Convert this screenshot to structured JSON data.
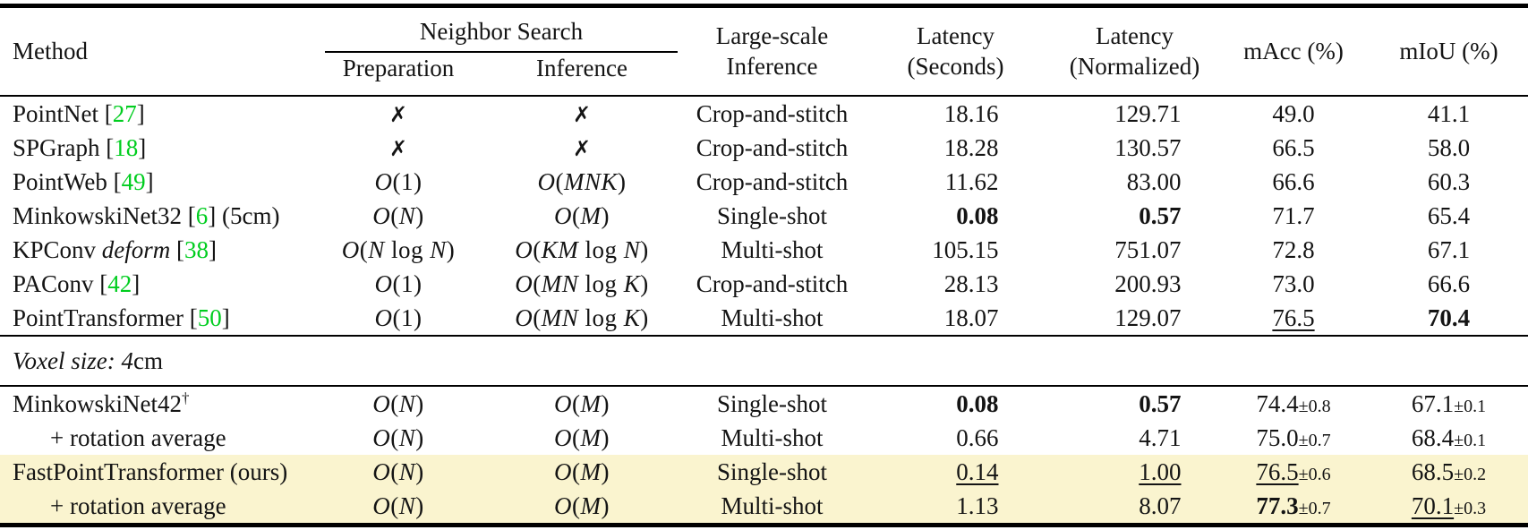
{
  "colors": {
    "citation_green": "#00CD1F",
    "highlight_yellow": "#FAF4CF"
  },
  "header": {
    "method": "Method",
    "neighbor_search": "Neighbor Search",
    "preparation": "Preparation",
    "inference": "Inference",
    "large_scale_line1": "Large-scale",
    "large_scale_line2": "Inference",
    "latency_sec_line1": "Latency",
    "latency_sec_line2": "(Seconds)",
    "latency_norm_line1": "Latency",
    "latency_norm_line2": "(Normalized)",
    "macc": "mAcc (%)",
    "miou": "mIoU (%)"
  },
  "section_divider": {
    "italic_part": "Voxel size: 4",
    "roman_part": "cm"
  },
  "rows": [
    {
      "section": "top",
      "method": "PointNet",
      "cite": "27",
      "prep": "✗",
      "inf": "✗",
      "large": "Crop-and-stitch",
      "sec": "18.16",
      "norm": "129.71",
      "macc": "49.0",
      "miou": "41.1"
    },
    {
      "section": "top",
      "method": "SPGraph",
      "cite": "18",
      "prep": "✗",
      "inf": "✗",
      "large": "Crop-and-stitch",
      "sec": "18.28",
      "norm": "130.57",
      "macc": "66.5",
      "miou": "58.0"
    },
    {
      "section": "top",
      "method": "PointWeb",
      "cite": "49",
      "prep": "O(1)",
      "inf": "O(MNK)",
      "large": "Crop-and-stitch",
      "sec": "11.62",
      "norm": "83.00",
      "macc": "66.6",
      "miou": "60.3"
    },
    {
      "section": "top",
      "method": "MinkowskiNet32",
      "cite": "6",
      "suffix": " (5cm)",
      "prep": "O(N)",
      "inf": "O(M)",
      "large": "Single-shot",
      "sec": "0.08",
      "sec_style": "bold",
      "norm": "0.57",
      "norm_style": "bold",
      "macc": "71.7",
      "miou": "65.4"
    },
    {
      "section": "top",
      "method": "KPConv ",
      "method_italic": "deform",
      "cite": "38",
      "prep": "O(N log N)",
      "inf": "O(KM log N)",
      "large": "Multi-shot",
      "sec": "105.15",
      "norm": "751.07",
      "macc": "72.8",
      "miou": "67.1"
    },
    {
      "section": "top",
      "method": "PAConv",
      "cite": "42",
      "prep": "O(1)",
      "inf": "O(MN log K)",
      "large": "Crop-and-stitch",
      "sec": "28.13",
      "norm": "200.93",
      "macc": "73.0",
      "miou": "66.6"
    },
    {
      "section": "top",
      "method": "PointTransformer",
      "cite": "50",
      "prep": "O(1)",
      "inf": "O(MN log K)",
      "large": "Multi-shot",
      "sec": "18.07",
      "norm": "129.07",
      "macc": "76.5",
      "macc_style": "underline",
      "miou": "70.4",
      "miou_style": "bold"
    },
    {
      "section": "bottom",
      "method": "MinkowskiNet42",
      "dagger": true,
      "prep": "O(N)",
      "inf": "O(M)",
      "large": "Single-shot",
      "sec": "0.08",
      "sec_style": "bold",
      "norm": "0.57",
      "norm_style": "bold",
      "macc": "74.4",
      "macc_pm": "0.8",
      "miou": "67.1",
      "miou_pm": "0.1"
    },
    {
      "section": "bottom",
      "method": "+ rotation average",
      "indent": true,
      "prep": "O(N)",
      "inf": "O(M)",
      "large": "Multi-shot",
      "sec": "0.66",
      "norm": "4.71",
      "macc": "75.0",
      "macc_pm": "0.7",
      "miou": "68.4",
      "miou_pm": "0.1"
    },
    {
      "section": "bottom",
      "method": "FastPointTransformer (ours)",
      "highlight": true,
      "prep": "O(N)",
      "inf": "O(M)",
      "large": "Single-shot",
      "sec": "0.14",
      "sec_style": "underline",
      "norm": "1.00",
      "norm_style": "underline",
      "macc": "76.5",
      "macc_pm": "0.6",
      "macc_style": "underline",
      "miou": "68.5",
      "miou_pm": "0.2"
    },
    {
      "section": "bottom",
      "method": "+ rotation average",
      "indent": true,
      "highlight": true,
      "prep": "O(N)",
      "inf": "O(M)",
      "large": "Multi-shot",
      "sec": "1.13",
      "norm": "8.07",
      "macc": "77.3",
      "macc_pm": "0.7",
      "macc_style": "bold",
      "miou": "70.1",
      "miou_pm": "0.3",
      "miou_style": "underline"
    }
  ]
}
